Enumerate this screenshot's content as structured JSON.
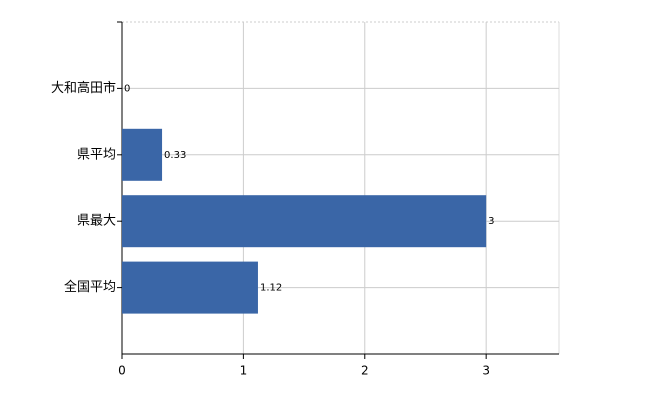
{
  "chart_data": {
    "type": "bar",
    "orientation": "horizontal",
    "categories": [
      "大和高田市",
      "県平均",
      "県最大",
      "全国平均"
    ],
    "values": [
      0,
      0.33,
      3,
      1.12
    ],
    "color": "#3a66a7",
    "xlim": [
      0,
      3.6
    ],
    "xticks": [
      0,
      1,
      2,
      3
    ],
    "grid": true
  }
}
